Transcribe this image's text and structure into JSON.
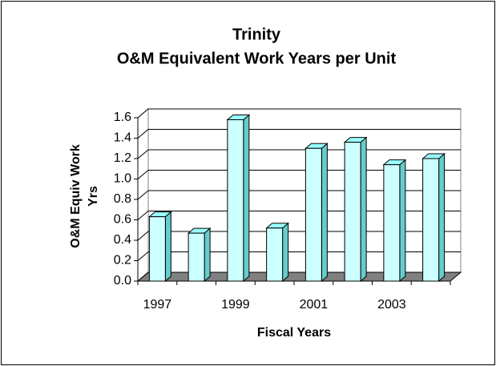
{
  "chart_data": {
    "type": "bar3d",
    "title": "Trinity",
    "subtitle": "O&M Equivalent Work Years per Unit",
    "y_label": [
      "O&M Equiv Work",
      "Yrs"
    ],
    "x_label": "Fiscal Years",
    "categories": [
      "1997",
      null,
      "1999",
      null,
      "2001",
      null,
      "2003",
      null
    ],
    "values": [
      0.63,
      0.47,
      1.58,
      0.52,
      1.3,
      1.36,
      1.14,
      1.2
    ],
    "color": "#ccffff",
    "ylim": [
      0,
      1.6
    ],
    "yticks": [
      {
        "value": 0,
        "label": "0.0"
      },
      0.2,
      0.4,
      0.6,
      0.8,
      {
        "value": 1,
        "label": "1.0"
      },
      1.2,
      1.4,
      1.6
    ],
    "grid": true
  }
}
